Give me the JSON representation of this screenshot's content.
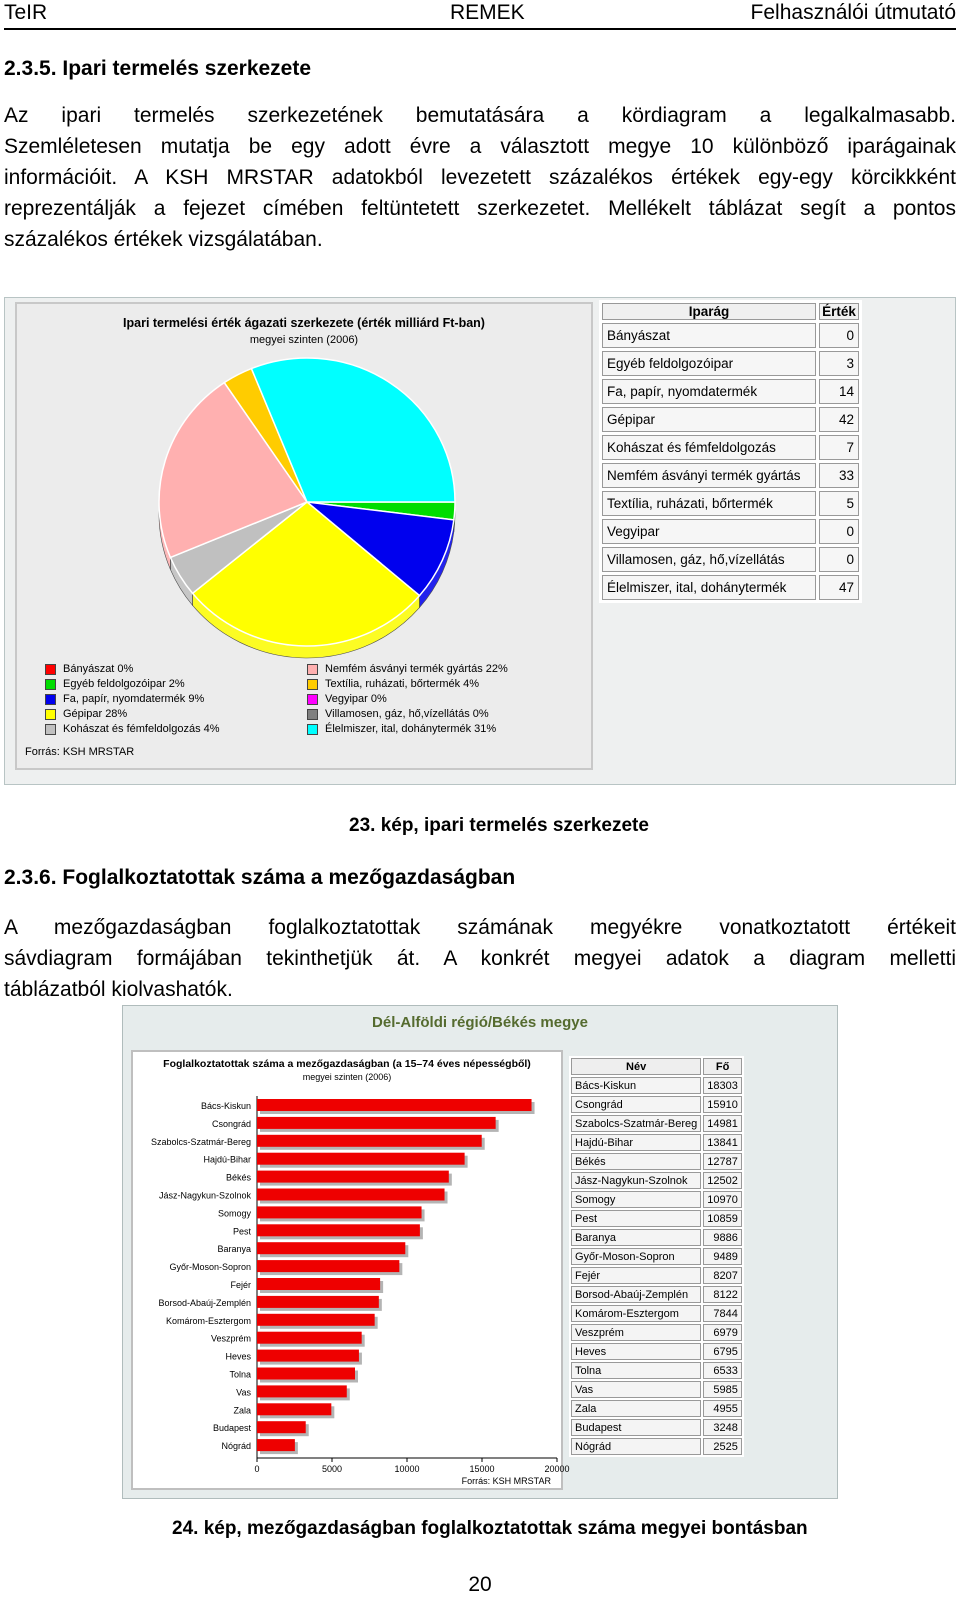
{
  "header": {
    "left": "TeIR",
    "center": "REMEK",
    "right": "Felhasználói útmutató"
  },
  "section1": {
    "heading": "2.3.5.   Ipari termelés szerkezete",
    "lines": [
      "Az ipari termelés szerkezetének bemutatására a kördiagram a legalkalmasabb.",
      "Szemléletesen mutatja be egy adott évre a választott megye 10 különböző iparágainak",
      "információit. A KSH MRSTAR adatokból levezetett százalékos értékek egy-egy körcikkként",
      "reprezentálják a fejezet címében feltüntetett szerkezetet. Mellékelt táblázat segít a pontos",
      "százalékos értékek vizsgálatában."
    ]
  },
  "figure1": {
    "caption": "23. kép, ipari termelés szerkezete",
    "source": "Forrás: KSH MRSTAR",
    "table_headers": {
      "name": "Iparág",
      "value": "Érték"
    }
  },
  "section2": {
    "heading": "2.3.6.   Foglalkoztatottak száma a mezőgazdaságban",
    "lines": [
      "A mezőgazdaságban foglalkoztatottak számának megyékre vonatkoztatott értékeit",
      "sávdiagram formájában tekinthetjük át.  A konkrét megyei adatok a diagram melletti",
      "táblázatból kiolvashatók."
    ]
  },
  "figure2": {
    "region_title": "Dél-Alföldi régió/Békés megye",
    "caption": "24. kép, mezőgazdaságban foglalkoztatottak száma megyei bontásban",
    "source": "Forrás: KSH MRSTAR",
    "table_headers": {
      "name": "Név",
      "value": "Fő"
    }
  },
  "page_number": "20",
  "colors": {
    "red": "#ff0000",
    "green": "#00dd00",
    "blue": "#0000ee",
    "yellow": "#ffff00",
    "silver": "#c0c0c0",
    "pink": "#ffb0b0",
    "orange": "#ffcc00",
    "magenta": "#ff00ff",
    "gray": "#7f7f7f",
    "cyan": "#00ffff",
    "bar": "#ee0000"
  },
  "chart_data": [
    {
      "type": "pie",
      "title": "Ipari termelési érték ágazati szerkezete (érték milliárd Ft-ban)",
      "subtitle": "megyei szinten (2006)",
      "slices": [
        {
          "name": "Bányászat",
          "legend": "Bányászat 0%",
          "value": 0,
          "color": "#ff0000"
        },
        {
          "name": "Egyéb feldolgozóipar",
          "legend": "Egyéb feldolgozóipar 2%",
          "value": 3,
          "color": "#00dd00"
        },
        {
          "name": "Fa, papír, nyomdatermék",
          "legend": "Fa, papír, nyomdatermék 9%",
          "value": 14,
          "color": "#0000ee"
        },
        {
          "name": "Gépipar",
          "legend": "Gépipar 28%",
          "value": 42,
          "color": "#ffff00"
        },
        {
          "name": "Kohászat és fémfeldolgozás",
          "legend": "Kohászat és fémfeldolgozás 4%",
          "value": 7,
          "color": "#c0c0c0"
        },
        {
          "name": "Nemfém ásványi termék gyártás",
          "legend": "Nemfém ásványi termék gyártás 22%",
          "value": 33,
          "color": "#ffb0b0"
        },
        {
          "name": "Textília, ruházati, bőrtermék",
          "legend": "Textília, ruházati, bőrtermék 4%",
          "value": 5,
          "color": "#ffcc00"
        },
        {
          "name": "Vegyipar",
          "legend": "Vegyipar 0%",
          "value": 0,
          "color": "#ff00ff"
        },
        {
          "name": "Villamosen, gáz, hő,vízellátás",
          "legend": "Villamosen, gáz, hő,vízellátás 0%",
          "value": 0,
          "color": "#7f7f7f"
        },
        {
          "name": "Élelmiszer, ital, dohánytermék",
          "legend": "Élelmiszer, ital, dohánytermék 31%",
          "value": 47,
          "color": "#00ffff"
        }
      ]
    },
    {
      "type": "bar",
      "orientation": "horizontal",
      "title": "Foglalkoztatottak száma a mezőgazdaságban (a 15–74 éves népességből)",
      "subtitle": "megyei szinten (2006)",
      "categories": [
        "Bács-Kiskun",
        "Csongrád",
        "Szabolcs-Szatmár-Bereg",
        "Hajdú-Bihar",
        "Békés",
        "Jász-Nagykun-Szolnok",
        "Somogy",
        "Pest",
        "Baranya",
        "Győr-Moson-Sopron",
        "Fejér",
        "Borsod-Abaúj-Zemplén",
        "Komárom-Esztergom",
        "Veszprém",
        "Heves",
        "Tolna",
        "Vas",
        "Zala",
        "Budapest",
        "Nógrád"
      ],
      "values": [
        18303,
        15910,
        14981,
        13841,
        12787,
        12502,
        10970,
        10859,
        9886,
        9489,
        8207,
        8122,
        7844,
        6979,
        6795,
        6533,
        5985,
        4955,
        3248,
        2525
      ],
      "xlim": [
        0,
        20000
      ],
      "xticks": [
        "0",
        "5000",
        "10000",
        "15000",
        "20000"
      ]
    }
  ]
}
